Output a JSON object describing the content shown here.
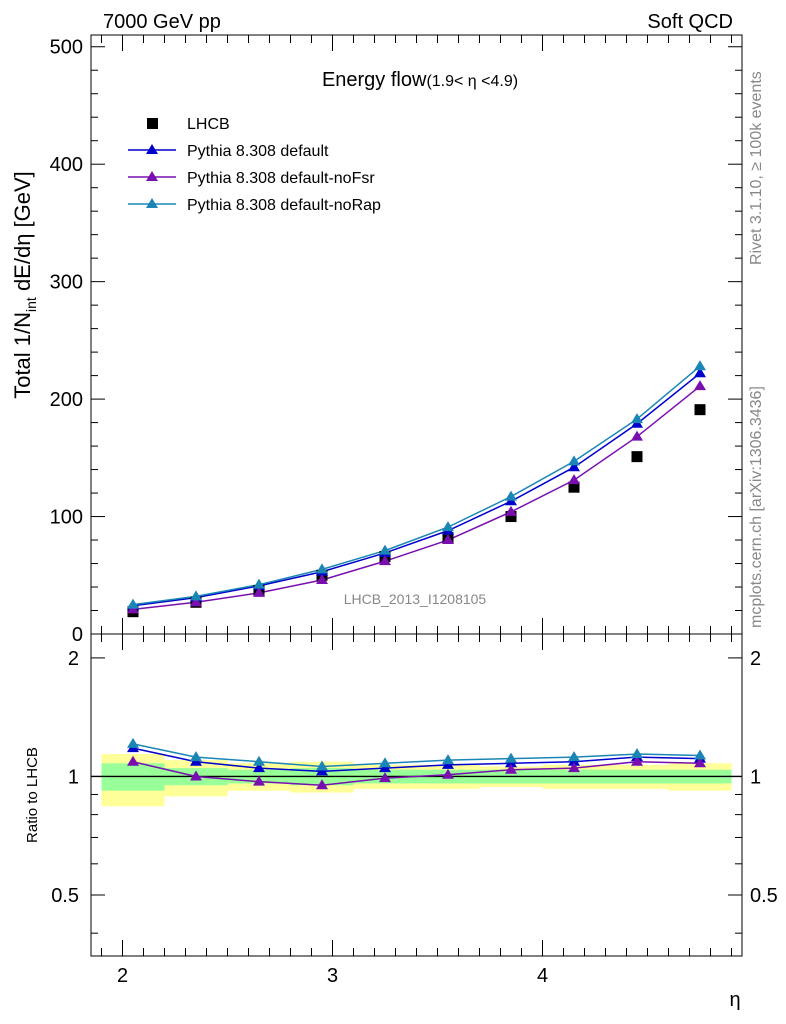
{
  "header": {
    "left": "7000 GeV pp",
    "right": "Soft QCD"
  },
  "side": {
    "rivet": "Rivet 3.1.10, ≥ 100k events",
    "mcplots": "mcplots.cern.ch [arXiv:1306.3436]"
  },
  "colors": {
    "lhcb": "#000000",
    "default": "#0000cc",
    "noFsr": "#7a0fb0",
    "noRap": "#1a86b5",
    "band_inner": "#99ff99",
    "band_outer": "#ffff99"
  },
  "chart_data": [
    {
      "type": "line",
      "title": "Energy flow",
      "title_sub": "(1.9< η <4.9)",
      "ylabel_parts": {
        "a": "Total 1/N",
        "sub": "int",
        "b": " dE/dη [GeV]"
      },
      "watermark": "LHCB_2013_I1208105",
      "xlim": [
        1.85,
        4.95
      ],
      "ylim": [
        0,
        510
      ],
      "yticks": [
        0,
        100,
        200,
        300,
        400,
        500
      ],
      "ytick_labels": [
        "0",
        "100",
        "200",
        "300",
        "400",
        "500"
      ],
      "legend_position": "top-left",
      "x": [
        2.05,
        2.35,
        2.65,
        2.95,
        3.25,
        3.55,
        3.85,
        4.15,
        4.45,
        4.75
      ],
      "series": [
        {
          "name": "LHCB",
          "key": "lhcb",
          "marker": "square",
          "values": [
            19,
            27,
            37,
            50,
            66,
            82,
            100,
            125,
            151,
            191
          ]
        },
        {
          "name": "Pythia 8.308 default",
          "key": "default",
          "marker": "triangle",
          "values": [
            24,
            31,
            41,
            53,
            69,
            88,
            113,
            142,
            179,
            222
          ]
        },
        {
          "name": "Pythia 8.308 default-noFsr",
          "key": "noFsr",
          "marker": "triangle",
          "values": [
            21,
            27,
            35,
            46,
            62,
            80,
            104,
            131,
            168,
            211
          ]
        },
        {
          "name": "Pythia 8.308 default-noRap",
          "key": "noRap",
          "marker": "triangle",
          "values": [
            25,
            32,
            42,
            55,
            71,
            91,
            117,
            147,
            183,
            228
          ]
        }
      ]
    },
    {
      "type": "line",
      "ylabel": "Ratio to LHCB",
      "xlabel": "η",
      "xlim": [
        1.85,
        4.95
      ],
      "ylim": [
        0.35,
        2.3
      ],
      "xticks": [
        2,
        3,
        4
      ],
      "xtick_labels": [
        "2",
        "3",
        "4"
      ],
      "yticks": [
        0.5,
        1,
        2
      ],
      "ytick_labels": [
        "0.5",
        "1",
        "2"
      ],
      "reference_line": 1,
      "bands": {
        "edges": [
          1.9,
          2.2,
          2.5,
          2.8,
          3.1,
          3.4,
          3.7,
          4.0,
          4.3,
          4.6,
          4.9
        ],
        "inner_low": [
          0.92,
          0.95,
          0.96,
          0.95,
          0.96,
          0.96,
          0.96,
          0.96,
          0.96,
          0.96
        ],
        "inner_high": [
          1.08,
          1.05,
          1.04,
          1.05,
          1.04,
          1.04,
          1.04,
          1.04,
          1.04,
          1.04
        ],
        "outer_low": [
          0.84,
          0.89,
          0.92,
          0.91,
          0.93,
          0.93,
          0.94,
          0.93,
          0.93,
          0.92
        ],
        "outer_high": [
          1.14,
          1.1,
          1.08,
          1.09,
          1.07,
          1.07,
          1.06,
          1.07,
          1.07,
          1.08
        ]
      },
      "series": [
        {
          "name": "Pythia 8.308 default",
          "key": "default",
          "values": [
            1.18,
            1.09,
            1.05,
            1.03,
            1.05,
            1.07,
            1.08,
            1.09,
            1.12,
            1.11
          ]
        },
        {
          "name": "Pythia 8.308 default-noFsr",
          "key": "noFsr",
          "values": [
            1.09,
            1.0,
            0.97,
            0.95,
            0.99,
            1.01,
            1.04,
            1.05,
            1.09,
            1.08
          ]
        },
        {
          "name": "Pythia 8.308 default-noRap",
          "key": "noRap",
          "values": [
            1.21,
            1.12,
            1.09,
            1.06,
            1.08,
            1.1,
            1.11,
            1.12,
            1.14,
            1.13
          ]
        }
      ]
    }
  ]
}
